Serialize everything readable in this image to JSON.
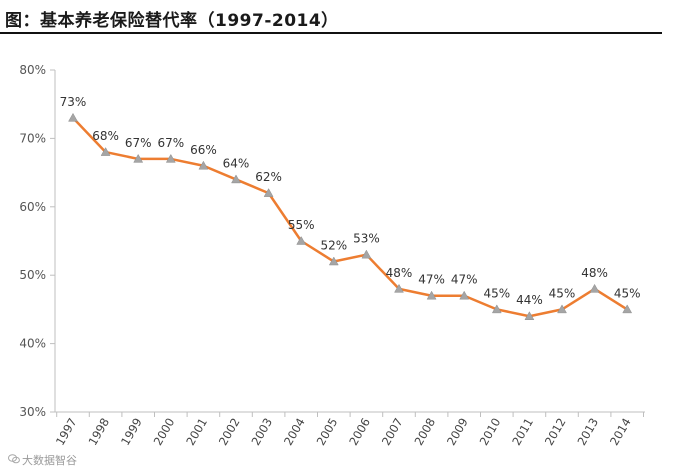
{
  "title": "图：基本养老保险替代率（1997-2014）",
  "watermark": {
    "icon": "wechat-icon",
    "text": "大数据智谷"
  },
  "colors": {
    "line": "#ED7D31",
    "marker": "#A5A5A5",
    "axis": "#BFBFBF"
  },
  "chart_data": {
    "type": "line",
    "title": "图：基本养老保险替代率（1997-2014）",
    "xlabel": "",
    "ylabel": "",
    "categories": [
      "1997",
      "1998",
      "1999",
      "2000",
      "2001",
      "2002",
      "2003",
      "2004",
      "2005",
      "2006",
      "2007",
      "2008",
      "2009",
      "2010",
      "2011",
      "2012",
      "2013",
      "2014"
    ],
    "series": [
      {
        "name": "基本养老保险替代率",
        "values": [
          73,
          68,
          67,
          67,
          66,
          64,
          62,
          55,
          52,
          53,
          48,
          47,
          47,
          45,
          44,
          45,
          48,
          45
        ],
        "data_labels": [
          "73%",
          "68%",
          "67%",
          "67%",
          "66%",
          "64%",
          "62%",
          "55%",
          "52%",
          "53%",
          "48%",
          "47%",
          "47%",
          "45%",
          "44%",
          "45%",
          "48%",
          "45%"
        ]
      }
    ],
    "ylim": [
      30,
      80
    ],
    "yticks": [
      30,
      40,
      50,
      60,
      70,
      80
    ],
    "ytick_labels": [
      "30%",
      "40%",
      "50%",
      "60%",
      "70%",
      "80%"
    ],
    "grid": false,
    "legend": "none"
  }
}
